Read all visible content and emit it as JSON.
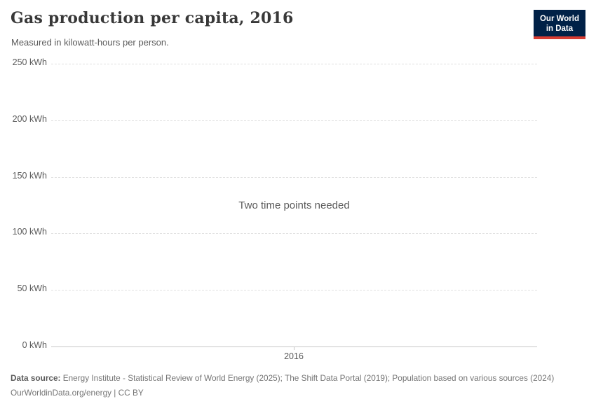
{
  "header": {
    "title": "Gas production per capita, 2016",
    "subtitle": "Measured in kilowatt-hours per person.",
    "logo": {
      "line1": "Our World",
      "line2": "in Data",
      "bg_color": "#002147",
      "accent_color": "#d73c32"
    }
  },
  "chart_data": {
    "type": "line",
    "title": "Gas production per capita, 2016",
    "subtitle": "Measured in kilowatt-hours per person.",
    "unit": "kWh",
    "series": [],
    "x": [
      2016
    ],
    "empty_message": "Two time points needed",
    "ylim": [
      0,
      250
    ],
    "yticks": [
      250,
      200,
      150,
      100,
      50,
      0
    ],
    "ytick_labels": [
      "250 kWh",
      "200 kWh",
      "150 kWh",
      "100 kWh",
      "50 kWh",
      "0 kWh"
    ],
    "xtick_labels": [
      "2016"
    ],
    "grid": true,
    "gridline_color": "#e0e0e0",
    "axis_color": "#c6c6c6",
    "legend": "none"
  },
  "footer": {
    "datasource_label": "Data source:",
    "datasource_text": " Energy Institute - Statistical Review of World Energy (2025); The Shift Data Portal (2019); Population based on various sources (2024)",
    "link_line": "OurWorldinData.org/energy | CC BY"
  }
}
